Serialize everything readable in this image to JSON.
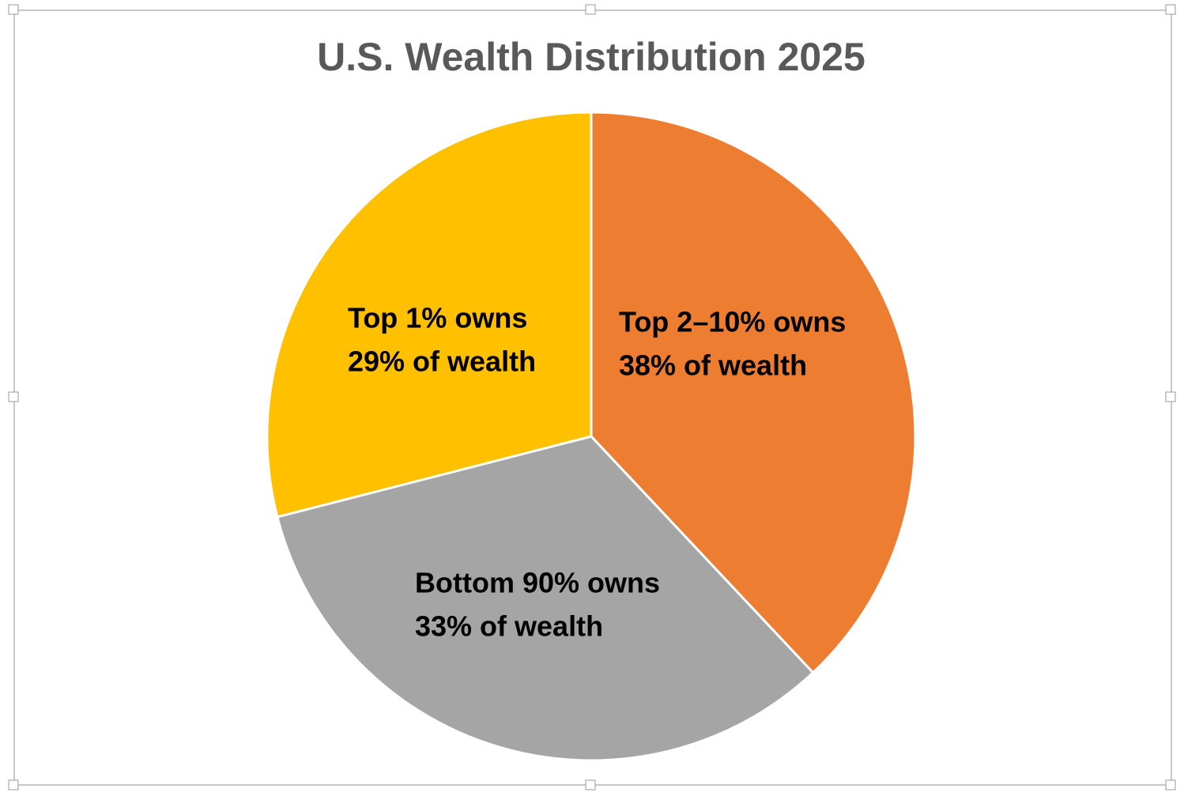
{
  "chart_data": {
    "type": "pie",
    "title": "U.S. Wealth Distribution 2025",
    "categories": [
      "Top 2–10% owns",
      "Bottom 90% owns",
      "Top 1% owns"
    ],
    "values": [
      38,
      33,
      29
    ],
    "value_labels": [
      "38% of wealth",
      "33% of wealth",
      "29% of wealth"
    ],
    "colors": [
      "#ED7D31",
      "#A5A5A5",
      "#FFC000"
    ]
  }
}
